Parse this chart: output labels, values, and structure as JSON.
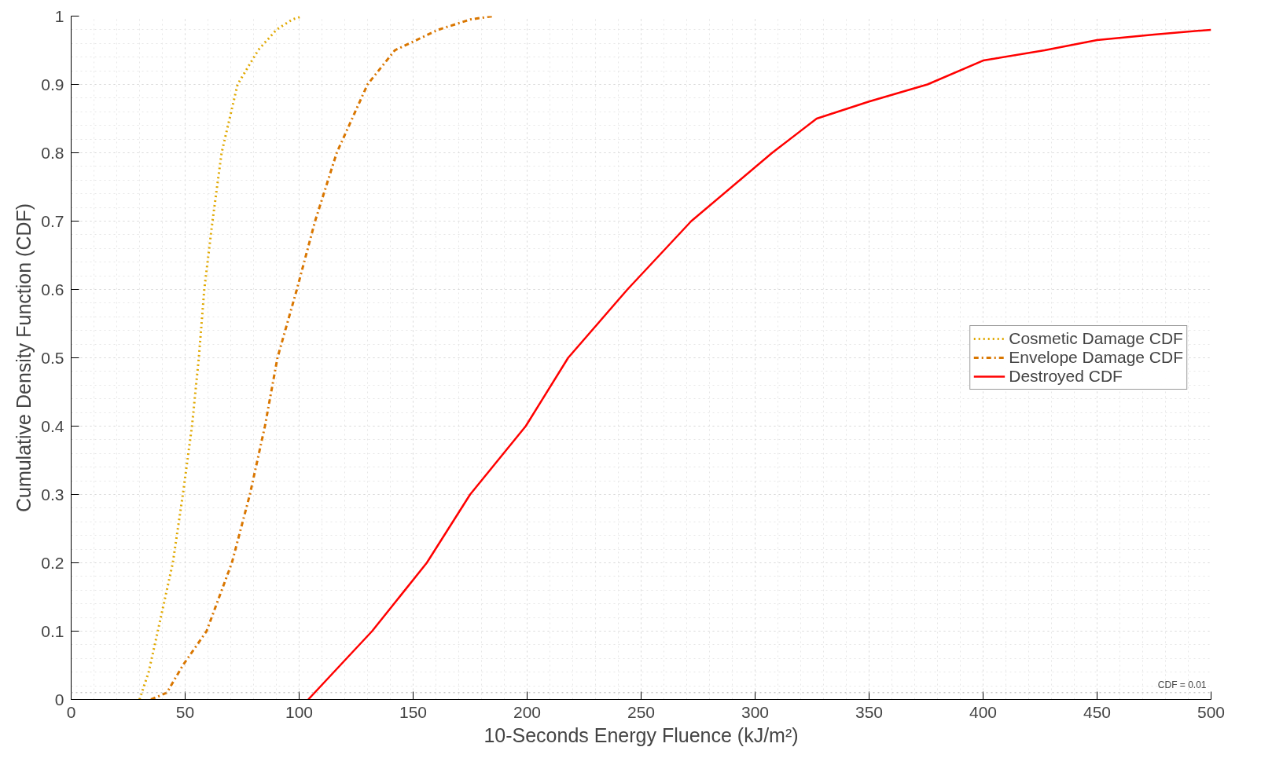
{
  "chart_data": {
    "type": "line",
    "xlabel": "10-Seconds Energy Fluence (kJ/m²)",
    "ylabel": "Cumulative Density Function (CDF)",
    "xlim": [
      0,
      500
    ],
    "ylim": [
      0,
      1
    ],
    "xticks": [
      0,
      50,
      100,
      150,
      200,
      250,
      300,
      350,
      400,
      450,
      500
    ],
    "yticks": [
      0,
      0.1,
      0.2,
      0.3,
      0.4,
      0.5,
      0.6,
      0.7,
      0.8,
      0.9,
      1
    ],
    "grid": true,
    "legend": "right",
    "marker": "none",
    "ref_lines": [
      {
        "axis": "y",
        "value": 0.01,
        "label": "CDF = 0.01",
        "color": "#b0b0b0",
        "line_style": "dotted"
      }
    ],
    "series": [
      {
        "name": "Cosmetic Damage CDF",
        "color": "#e0a800",
        "line_style": "dotted",
        "x": [
          30,
          34,
          38,
          44.6,
          49,
          53,
          56,
          58.4,
          62,
          66,
          73,
          82,
          90,
          97,
          101.5
        ],
        "values": [
          0,
          0.04,
          0.1,
          0.2,
          0.3,
          0.4,
          0.5,
          0.6,
          0.7,
          0.8,
          0.9,
          0.95,
          0.98,
          0.995,
          1
        ]
      },
      {
        "name": "Envelope Damage CDF",
        "color": "#d97600",
        "line_style": "dashdot",
        "x": [
          35,
          42,
          49,
          59.4,
          70.5,
          78.4,
          85,
          90.5,
          99,
          107,
          116.5,
          130,
          142,
          161,
          175,
          185
        ],
        "values": [
          0,
          0.01,
          0.05,
          0.1,
          0.2,
          0.3,
          0.4,
          0.5,
          0.6,
          0.7,
          0.8,
          0.9,
          0.95,
          0.98,
          0.995,
          1
        ]
      },
      {
        "name": "Destroyed CDF",
        "color": "#ff0000",
        "line_style": "solid",
        "x": [
          104,
          118,
          132,
          156,
          175,
          199.4,
          218,
          244,
          272,
          307.5,
          327,
          350,
          375.6,
          400,
          427,
          450,
          475,
          500
        ],
        "values": [
          0,
          0.05,
          0.1,
          0.2,
          0.3,
          0.4,
          0.5,
          0.6,
          0.7,
          0.8,
          0.85,
          0.875,
          0.9,
          0.935,
          0.95,
          0.965,
          0.973,
          0.98
        ]
      }
    ]
  }
}
